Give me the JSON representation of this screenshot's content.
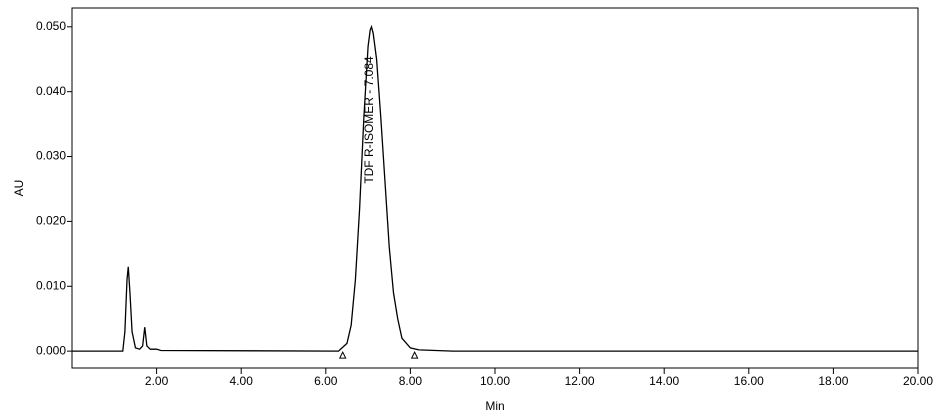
{
  "chart_data": {
    "type": "line",
    "xlabel": "Min",
    "ylabel": "AU",
    "annotation": "TDF R-ISOMER - 7.084",
    "x": [
      0,
      1.2,
      1.25,
      1.3,
      1.33,
      1.37,
      1.42,
      1.5,
      1.6,
      1.67,
      1.72,
      1.77,
      1.85,
      2.0,
      2.1,
      6.3,
      6.5,
      6.6,
      6.7,
      6.8,
      6.9,
      7.0,
      7.05,
      7.08,
      7.12,
      7.2,
      7.3,
      7.4,
      7.5,
      7.6,
      7.7,
      7.8,
      8.0,
      8.2,
      9.0,
      20
    ],
    "values": [
      0,
      0,
      0.003,
      0.011,
      0.013,
      0.009,
      0.003,
      0.0005,
      0.0003,
      0.0008,
      0.0037,
      0.0008,
      0.0003,
      0.0003,
      0.0001,
      0,
      0.0012,
      0.004,
      0.011,
      0.022,
      0.036,
      0.047,
      0.0495,
      0.05,
      0.049,
      0.045,
      0.036,
      0.026,
      0.016,
      0.009,
      0.005,
      0.002,
      0.0005,
      0.0002,
      0,
      0
    ],
    "color": "#000000",
    "integration_marks": {
      "x": [
        6.4,
        8.1
      ],
      "values": [
        0,
        0
      ]
    },
    "xlim": [
      0,
      20
    ],
    "ylim": [
      -0.0026,
      0.0529
    ],
    "xticks": [
      {
        "value": 2,
        "label": "2.00"
      },
      {
        "value": 4,
        "label": "4.00"
      },
      {
        "value": 6,
        "label": "6.00"
      },
      {
        "value": 8,
        "label": "8.00"
      },
      {
        "value": 10,
        "label": "10.00"
      },
      {
        "value": 12,
        "label": "12.00"
      },
      {
        "value": 14,
        "label": "14.00"
      },
      {
        "value": 16,
        "label": "16.00"
      },
      {
        "value": 18,
        "label": "18.00"
      },
      {
        "value": 20,
        "label": "20.00"
      }
    ],
    "yticks": [
      {
        "value": 0,
        "label": "0.000"
      },
      {
        "value": 0.01,
        "label": "0.010"
      },
      {
        "value": 0.02,
        "label": "0.020"
      },
      {
        "value": 0.03,
        "label": "0.030"
      },
      {
        "value": 0.04,
        "label": "0.040"
      },
      {
        "value": 0.05,
        "label": "0.050"
      }
    ],
    "grid": false
  }
}
